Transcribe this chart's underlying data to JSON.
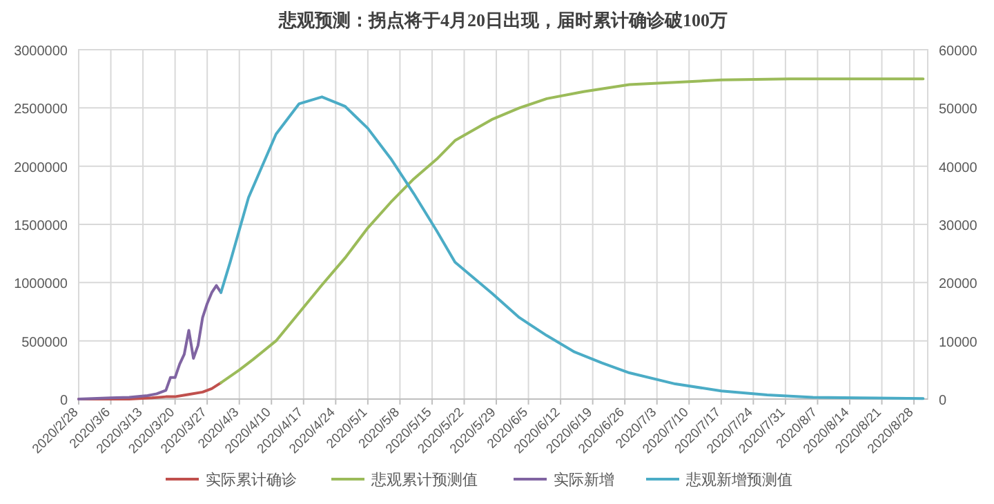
{
  "chart_data": {
    "type": "line",
    "title": "悲观预测：拐点将于4月20日出现，届时累计确诊破100万",
    "xlim": [
      "2020-02-28",
      "2020-08-31"
    ],
    "xticks": [
      {
        "value": "2020-02-28",
        "label": "2020/2/28"
      },
      {
        "value": "2020-03-06",
        "label": "2020/3/6"
      },
      {
        "value": "2020-03-13",
        "label": "2020/3/13"
      },
      {
        "value": "2020-03-20",
        "label": "2020/3/20"
      },
      {
        "value": "2020-03-27",
        "label": "2020/3/27"
      },
      {
        "value": "2020-04-03",
        "label": "2020/4/3"
      },
      {
        "value": "2020-04-10",
        "label": "2020/4/10"
      },
      {
        "value": "2020-04-17",
        "label": "2020/4/17"
      },
      {
        "value": "2020-04-24",
        "label": "2020/4/24"
      },
      {
        "value": "2020-05-01",
        "label": "2020/5/1"
      },
      {
        "value": "2020-05-08",
        "label": "2020/5/8"
      },
      {
        "value": "2020-05-15",
        "label": "2020/5/15"
      },
      {
        "value": "2020-05-22",
        "label": "2020/5/22"
      },
      {
        "value": "2020-05-29",
        "label": "2020/5/29"
      },
      {
        "value": "2020-06-05",
        "label": "2020/6/5"
      },
      {
        "value": "2020-06-12",
        "label": "2020/6/12"
      },
      {
        "value": "2020-06-19",
        "label": "2020/6/19"
      },
      {
        "value": "2020-06-26",
        "label": "2020/6/26"
      },
      {
        "value": "2020-07-03",
        "label": "2020/7/3"
      },
      {
        "value": "2020-07-10",
        "label": "2020/7/10"
      },
      {
        "value": "2020-07-17",
        "label": "2020/7/17"
      },
      {
        "value": "2020-07-24",
        "label": "2020/7/24"
      },
      {
        "value": "2020-07-31",
        "label": "2020/7/31"
      },
      {
        "value": "2020-08-07",
        "label": "2020/8/7"
      },
      {
        "value": "2020-08-14",
        "label": "2020/8/14"
      },
      {
        "value": "2020-08-21",
        "label": "2020/8/21"
      },
      {
        "value": "2020-08-28",
        "label": "2020/8/28"
      }
    ],
    "ylim": [
      0,
      3000000
    ],
    "yticks": [
      0,
      500000,
      1000000,
      1500000,
      2000000,
      2500000,
      3000000
    ],
    "y2lim": [
      0,
      60000
    ],
    "y2ticks": [
      0,
      10000,
      20000,
      30000,
      40000,
      50000,
      60000
    ],
    "grid": true,
    "legend": "bottom",
    "series": [
      {
        "name": "实际累计确诊",
        "color": "#c0504d",
        "x": [
          "2020-02-28",
          "2020-03-05",
          "2020-03-10",
          "2020-03-15",
          "2020-03-18",
          "2020-03-20",
          "2020-03-23",
          "2020-03-26",
          "2020-03-28",
          "2020-03-30"
        ],
        "values": [
          0,
          0,
          0,
          10000,
          20000,
          20000,
          40000,
          60000,
          90000,
          140000
        ]
      },
      {
        "name": "悲观累计预测值",
        "color": "#9bbb59",
        "x": [
          "2020-03-30",
          "2020-04-03",
          "2020-04-06",
          "2020-04-11",
          "2020-04-16",
          "2020-04-21",
          "2020-04-26",
          "2020-05-01",
          "2020-05-06",
          "2020-05-11",
          "2020-05-16",
          "2020-05-20",
          "2020-05-28",
          "2020-06-03",
          "2020-06-09",
          "2020-06-17",
          "2020-06-27",
          "2020-07-07",
          "2020-07-17",
          "2020-08-01",
          "2020-08-30"
        ],
        "values": [
          140000,
          250000,
          340000,
          500000,
          740000,
          980000,
          1210000,
          1470000,
          1690000,
          1890000,
          2060000,
          2220000,
          2400000,
          2500000,
          2580000,
          2640000,
          2700000,
          2720000,
          2740000,
          2750000,
          2750000
        ]
      },
      {
        "name": "实际新增",
        "color": "#8064a2",
        "axis": "y2",
        "x": [
          "2020-02-28",
          "2020-03-06",
          "2020-03-10",
          "2020-03-14",
          "2020-03-16",
          "2020-03-18",
          "2020-03-19",
          "2020-03-20",
          "2020-03-21",
          "2020-03-22",
          "2020-03-23",
          "2020-03-24",
          "2020-03-25",
          "2020-03-26",
          "2020-03-27",
          "2020-03-28",
          "2020-03-29",
          "2020-03-30"
        ],
        "values": [
          0,
          200,
          300,
          600,
          900,
          1500,
          3700,
          3700,
          6000,
          7700,
          11800,
          7000,
          9200,
          14000,
          16400,
          18300,
          19500,
          18300
        ]
      },
      {
        "name": "悲观新增预测值",
        "color": "#4bacc6",
        "axis": "y2",
        "x": [
          "2020-03-30",
          "2020-04-01",
          "2020-04-05",
          "2020-04-11",
          "2020-04-16",
          "2020-04-21",
          "2020-04-26",
          "2020-05-01",
          "2020-05-06",
          "2020-05-11",
          "2020-05-16",
          "2020-05-20",
          "2020-05-28",
          "2020-06-03",
          "2020-06-09",
          "2020-06-15",
          "2020-06-21",
          "2020-06-27",
          "2020-07-07",
          "2020-07-17",
          "2020-07-27",
          "2020-08-06",
          "2020-08-16",
          "2020-08-30"
        ],
        "values": [
          18300,
          23500,
          34600,
          45500,
          50700,
          51900,
          50300,
          46500,
          41300,
          35300,
          28900,
          23500,
          18200,
          14000,
          10900,
          8100,
          6200,
          4500,
          2600,
          1400,
          700,
          300,
          200,
          100
        ]
      }
    ]
  }
}
